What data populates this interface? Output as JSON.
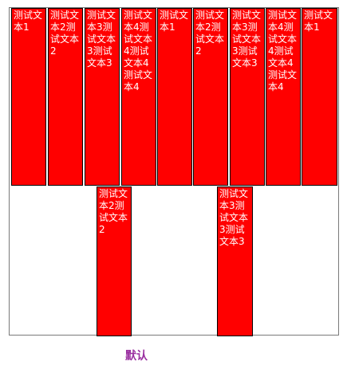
{
  "items": [
    {
      "text": "测试文本1"
    },
    {
      "text": "测试文本2测试文本2"
    },
    {
      "text": "测试文本3测试文本3测试文本3"
    },
    {
      "text": "测试文本4测试文本4测试文本4测试文本4"
    },
    {
      "text": "测试文本1"
    },
    {
      "text": "测试文本2测试文本2"
    },
    {
      "text": "测试文本3测试文本3测试文本3"
    },
    {
      "text": "测试文本4测试文本4测试文本4测试文本4"
    },
    {
      "text": "测试文本1"
    },
    {
      "text": "测试文本2测试文本2"
    },
    {
      "text": "测试文本3测试文本3测试文本3"
    }
  ],
  "caption": "默认",
  "colors": {
    "box_fill": "#ff0000",
    "box_border": "#000000",
    "box_text": "#ffffff",
    "caption": "#9a2fa0"
  }
}
